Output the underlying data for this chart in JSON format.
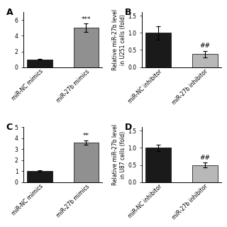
{
  "panels": [
    {
      "label": "A",
      "categories": [
        "miR-NC mimics",
        "miR-27b mimics"
      ],
      "values": [
        1.0,
        5.0
      ],
      "errors": [
        0.08,
        0.55
      ],
      "colors": [
        "#1a1a1a",
        "#909090"
      ],
      "ylabel": "",
      "ylim": [
        0,
        7
      ],
      "yticks": [
        0,
        2,
        4,
        6
      ],
      "significance": "***",
      "bar_width": 0.55
    },
    {
      "label": "B",
      "categories": [
        "miR-NC inhibitor",
        "miR-27b inhibitor"
      ],
      "values": [
        1.0,
        0.38
      ],
      "errors": [
        0.2,
        0.09
      ],
      "colors": [
        "#1a1a1a",
        "#b8b8b8"
      ],
      "ylabel": "Relative miR-27b level\nin U251 cells (fold)",
      "ylim": [
        0,
        1.6
      ],
      "yticks": [
        0.0,
        0.5,
        1.0,
        1.5
      ],
      "significance": "##",
      "bar_width": 0.55
    },
    {
      "label": "C",
      "categories": [
        "miR-NC mimics",
        "miR-27b mimics"
      ],
      "values": [
        1.0,
        3.6
      ],
      "errors": [
        0.07,
        0.22
      ],
      "colors": [
        "#1a1a1a",
        "#909090"
      ],
      "ylabel": "",
      "ylim": [
        0,
        5
      ],
      "yticks": [
        0,
        1,
        2,
        3,
        4,
        5
      ],
      "significance": "**",
      "bar_width": 0.55
    },
    {
      "label": "D",
      "categories": [
        "miR-NC inhibitor",
        "miR-27b inhibitor"
      ],
      "values": [
        1.0,
        0.5
      ],
      "errors": [
        0.1,
        0.07
      ],
      "colors": [
        "#1a1a1a",
        "#b8b8b8"
      ],
      "ylabel": "Relative miR-27b level\nin U87 cells (fold)",
      "ylim": [
        0,
        1.6
      ],
      "yticks": [
        0.0,
        0.5,
        1.0,
        1.5
      ],
      "significance": "##",
      "bar_width": 0.55
    }
  ],
  "background_color": "#ffffff",
  "tick_fontsize": 5.5,
  "label_fontsize": 5.5,
  "sig_fontsize": 6.5,
  "panel_label_fontsize": 9
}
